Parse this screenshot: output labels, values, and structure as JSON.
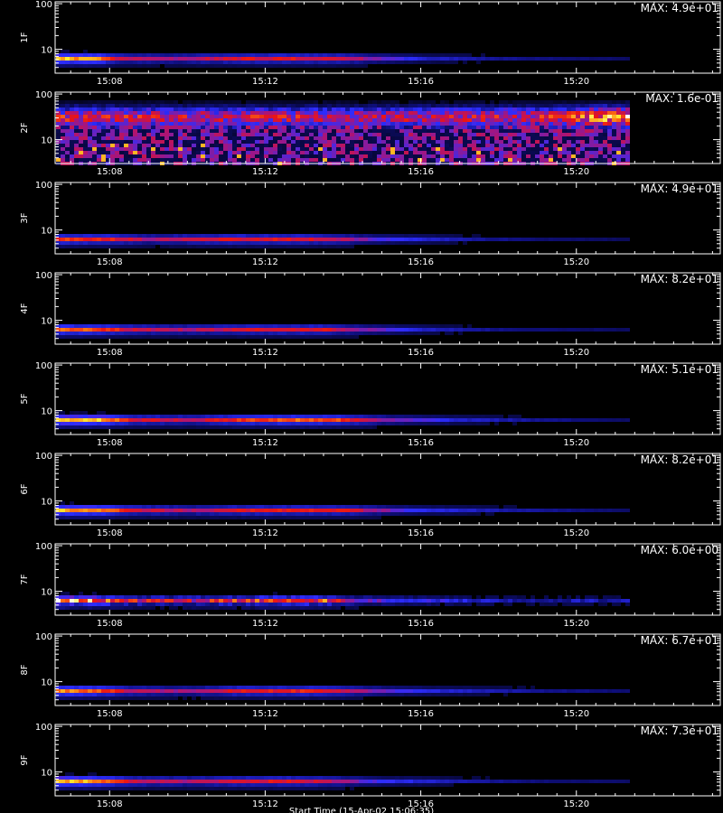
{
  "chart_data": {
    "type": "heatmap",
    "x_axis": {
      "tick_labels": [
        "15:08",
        "15:12",
        "15:16",
        "15:20"
      ],
      "tick_minutes": [
        8,
        12,
        16,
        20
      ],
      "range_minutes": [
        6.6,
        23.7
      ],
      "data_end_minutes": 21.3
    },
    "y_axis": {
      "scale": "log",
      "tick_labels": [
        "10",
        "100"
      ],
      "tick_values": [
        10,
        100
      ],
      "range": [
        3,
        110
      ]
    },
    "x_title": "Start Time (15-Apr-02 15:06:35)",
    "colormap": "black-blue-red-yellow-white",
    "panels": [
      {
        "label": "1F",
        "max_text": "MAX: 4.9e+01",
        "profile": [
          [
            6.6,
            0.95
          ],
          [
            7.7,
            0.92
          ],
          [
            8.2,
            0.65
          ],
          [
            9.5,
            0.6
          ],
          [
            11.2,
            0.7
          ],
          [
            12.5,
            0.72
          ],
          [
            14,
            0.68
          ],
          [
            15,
            0.5
          ],
          [
            16,
            0.35
          ],
          [
            18,
            0.27
          ],
          [
            20,
            0.22
          ],
          [
            21.3,
            0.2
          ]
        ]
      },
      {
        "label": "2F",
        "max_text": "MAX: 1.6e-01",
        "profile": [
          [
            6.6,
            0.62
          ],
          [
            10,
            0.6
          ],
          [
            14,
            0.58
          ],
          [
            18,
            0.6
          ],
          [
            19.7,
            0.66
          ],
          [
            20.5,
            0.78
          ],
          [
            21.3,
            0.86
          ]
        ]
      },
      {
        "label": "3F",
        "max_text": "MAX: 4.9e+01",
        "profile": [
          [
            6.6,
            0.8
          ],
          [
            8,
            0.75
          ],
          [
            9,
            0.6
          ],
          [
            11,
            0.72
          ],
          [
            13,
            0.72
          ],
          [
            14,
            0.62
          ],
          [
            15,
            0.45
          ],
          [
            17,
            0.3
          ],
          [
            19,
            0.22
          ],
          [
            21.3,
            0.18
          ]
        ]
      },
      {
        "label": "4F",
        "max_text": "MAX: 8.2e+01",
        "profile": [
          [
            6.6,
            0.85
          ],
          [
            7.8,
            0.8
          ],
          [
            8.5,
            0.68
          ],
          [
            10,
            0.62
          ],
          [
            11.5,
            0.7
          ],
          [
            13.5,
            0.72
          ],
          [
            14.5,
            0.55
          ],
          [
            16,
            0.35
          ],
          [
            18,
            0.25
          ],
          [
            21.3,
            0.18
          ]
        ]
      },
      {
        "label": "5F",
        "max_text": "MAX: 5.1e+01",
        "profile": [
          [
            6.6,
            0.98
          ],
          [
            7.8,
            0.95
          ],
          [
            8.5,
            0.72
          ],
          [
            10,
            0.65
          ],
          [
            11.5,
            0.8
          ],
          [
            13,
            0.85
          ],
          [
            14,
            0.78
          ],
          [
            15,
            0.55
          ],
          [
            17,
            0.35
          ],
          [
            19,
            0.27
          ],
          [
            21.3,
            0.2
          ]
        ]
      },
      {
        "label": "6F",
        "max_text": "MAX: 8.2e+01",
        "profile": [
          [
            6.6,
            0.95
          ],
          [
            7.8,
            0.9
          ],
          [
            8.5,
            0.7
          ],
          [
            10,
            0.62
          ],
          [
            11.5,
            0.72
          ],
          [
            14,
            0.72
          ],
          [
            15,
            0.55
          ],
          [
            16,
            0.4
          ],
          [
            18,
            0.3
          ],
          [
            21.3,
            0.2
          ]
        ]
      },
      {
        "label": "7F",
        "max_text": "MAX: 6.0e+00",
        "profile": [
          [
            6.6,
            0.95
          ],
          [
            7.5,
            0.9
          ],
          [
            8.5,
            0.68
          ],
          [
            10,
            0.65
          ],
          [
            11,
            0.72
          ],
          [
            12.5,
            0.82
          ],
          [
            13.6,
            0.78
          ],
          [
            14.5,
            0.5
          ],
          [
            16,
            0.42
          ],
          [
            18,
            0.32
          ],
          [
            21.3,
            0.3
          ]
        ]
      },
      {
        "label": "8F",
        "max_text": "MAX: 6.7e+01",
        "profile": [
          [
            6.6,
            0.9
          ],
          [
            7.6,
            0.85
          ],
          [
            8.5,
            0.65
          ],
          [
            10,
            0.58
          ],
          [
            11.2,
            0.72
          ],
          [
            13,
            0.75
          ],
          [
            14,
            0.68
          ],
          [
            15,
            0.5
          ],
          [
            16.5,
            0.36
          ],
          [
            18,
            0.3
          ],
          [
            21.3,
            0.22
          ]
        ]
      },
      {
        "label": "9F",
        "max_text": "MAX: 7.3e+01",
        "profile": [
          [
            6.6,
            0.98
          ],
          [
            7.6,
            0.92
          ],
          [
            8.5,
            0.68
          ],
          [
            10,
            0.62
          ],
          [
            11.5,
            0.72
          ],
          [
            13,
            0.7
          ],
          [
            14,
            0.58
          ],
          [
            15,
            0.42
          ],
          [
            17,
            0.3
          ],
          [
            19,
            0.23
          ],
          [
            21.3,
            0.2
          ]
        ]
      }
    ]
  }
}
